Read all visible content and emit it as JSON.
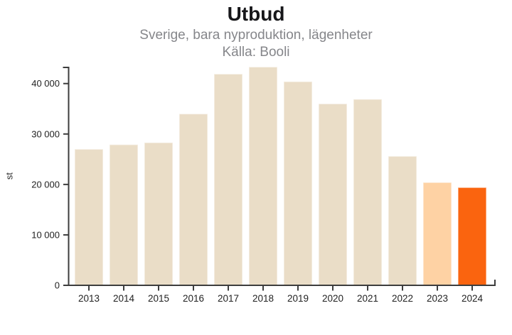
{
  "chart_data": {
    "type": "bar",
    "title": "Utbud",
    "subtitle": "Sverige, bara nyproduktion, lägenheter",
    "source": "Källa: Booli",
    "ylabel": "st",
    "categories": [
      "2013",
      "2014",
      "2015",
      "2016",
      "2017",
      "2018",
      "2019",
      "2020",
      "2021",
      "2022",
      "2023",
      "2024"
    ],
    "values": [
      27000,
      27900,
      28300,
      34000,
      41900,
      43300,
      40400,
      36000,
      36900,
      25600,
      20400,
      19400
    ],
    "colors": [
      "#eaddc7",
      "#eaddc7",
      "#eaddc7",
      "#eaddc7",
      "#eaddc7",
      "#eaddc7",
      "#eaddc7",
      "#eaddc7",
      "#eaddc7",
      "#eaddc7",
      "#fed2a4",
      "#fa640f"
    ],
    "yticks": [
      {
        "value": 0,
        "label": "0"
      },
      {
        "value": 10000,
        "label": "10 000"
      },
      {
        "value": 20000,
        "label": "20 000"
      },
      {
        "value": 30000,
        "label": "30 000"
      },
      {
        "value": 40000,
        "label": "40 000"
      }
    ],
    "ylim": [
      0,
      43200
    ],
    "grid": false,
    "legend": false,
    "axis_color": "#3d3d3d",
    "tick_label_color": "#222222",
    "bar_stroke_color": "rgba(255,255,255,0.55)"
  }
}
